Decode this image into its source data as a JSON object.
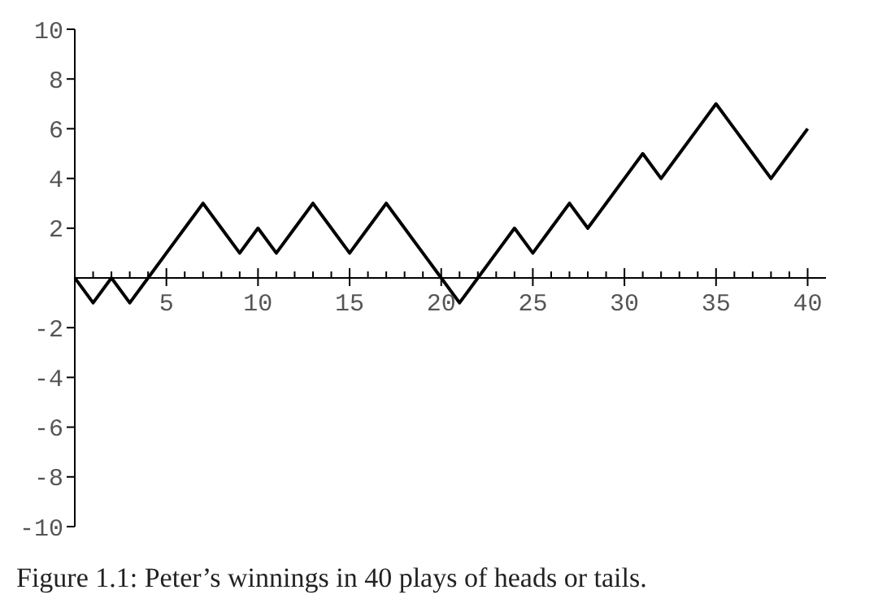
{
  "chart_data": {
    "type": "line",
    "annotations": [
      "Figure 1.1: Peter’s winnings in 40 plays of heads or tails."
    ],
    "x": [
      0,
      1,
      2,
      3,
      4,
      5,
      6,
      7,
      8,
      9,
      10,
      11,
      12,
      13,
      14,
      15,
      16,
      17,
      18,
      19,
      20,
      21,
      22,
      23,
      24,
      25,
      26,
      27,
      28,
      29,
      30,
      31,
      32,
      33,
      34,
      35,
      36,
      37,
      38,
      39,
      40
    ],
    "series": [
      {
        "color": "#000000",
        "values": [
          0,
          -1,
          0,
          -1,
          0,
          1,
          2,
          3,
          2,
          1,
          2,
          1,
          2,
          3,
          2,
          1,
          2,
          3,
          2,
          1,
          0,
          -1,
          0,
          1,
          2,
          1,
          2,
          3,
          2,
          3,
          4,
          5,
          4,
          5,
          6,
          7,
          6,
          5,
          4,
          5,
          6
        ]
      }
    ],
    "xlim": [
      0,
      41
    ],
    "xticks": [
      {
        "value": 1,
        "label": null
      },
      {
        "value": 2,
        "label": null
      },
      {
        "value": 3,
        "label": null
      },
      {
        "value": 4,
        "label": null
      },
      5,
      {
        "value": 6,
        "label": null
      },
      {
        "value": 7,
        "label": null
      },
      {
        "value": 8,
        "label": null
      },
      {
        "value": 9,
        "label": null
      },
      10,
      {
        "value": 11,
        "label": null
      },
      {
        "value": 12,
        "label": null
      },
      {
        "value": 13,
        "label": null
      },
      {
        "value": 14,
        "label": null
      },
      15,
      {
        "value": 16,
        "label": null
      },
      {
        "value": 17,
        "label": null
      },
      {
        "value": 18,
        "label": null
      },
      {
        "value": 19,
        "label": null
      },
      20,
      {
        "value": 21,
        "label": null
      },
      {
        "value": 22,
        "label": null
      },
      {
        "value": 23,
        "label": null
      },
      {
        "value": 24,
        "label": null
      },
      25,
      {
        "value": 26,
        "label": null
      },
      {
        "value": 27,
        "label": null
      },
      {
        "value": 28,
        "label": null
      },
      {
        "value": 29,
        "label": null
      },
      30,
      {
        "value": 31,
        "label": null
      },
      {
        "value": 32,
        "label": null
      },
      {
        "value": 33,
        "label": null
      },
      {
        "value": 34,
        "label": null
      },
      35,
      {
        "value": 36,
        "label": null
      },
      {
        "value": 37,
        "label": null
      },
      {
        "value": 38,
        "label": null
      },
      {
        "value": 39,
        "label": null
      },
      40
    ],
    "ylim": [
      -10,
      10
    ],
    "yticks": [
      -10,
      -8,
      -6,
      -4,
      -2,
      2,
      4,
      6,
      8,
      10
    ],
    "marker": "none",
    "line_style": "solid"
  }
}
